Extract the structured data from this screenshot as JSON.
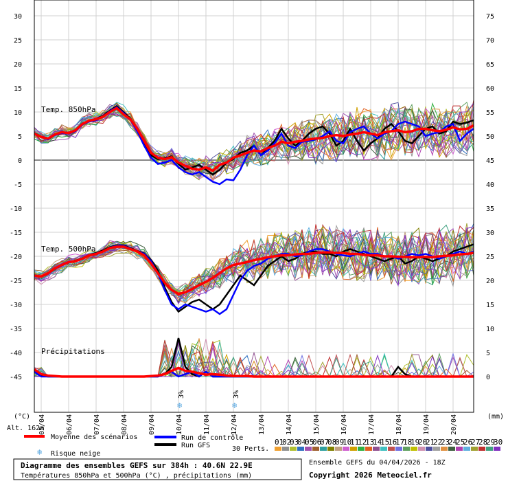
{
  "chart_data": {
    "type": "line",
    "title": "Diagramme des ensembles GEFS sur 384h : 40.6N 22.9E",
    "subtitle": "Températures 850hPa et 500hPa (°C) , précipitations (mm)",
    "left_axis_unit": "(°C)",
    "right_axis_unit": "(mm)",
    "altitude": "Alt. 162m",
    "left_ticks": [
      30,
      25,
      20,
      15,
      10,
      5,
      0,
      -5,
      -10,
      -15,
      -20,
      -25,
      -30,
      -35,
      -40,
      -45
    ],
    "right_ticks": [
      75,
      70,
      65,
      60,
      55,
      50,
      45,
      40,
      35,
      30,
      25,
      20,
      15,
      10,
      5,
      0
    ],
    "ylim": [
      -45,
      30
    ],
    "x_labels": [
      "05/04",
      "06/04",
      "07/04",
      "08/04",
      "09/04",
      "10/04",
      "11/04",
      "12/04",
      "13/04",
      "14/04",
      "15/04",
      "16/04",
      "17/04",
      "18/04",
      "19/04",
      "20/04"
    ],
    "x_range_days": [
      4.75,
      20.75
    ],
    "grid": true,
    "panel_labels": {
      "t850": "Temp. 850hPa",
      "t500": "Temp. 500hPa",
      "precip": "Précipitations"
    },
    "snow_risk_labels": [
      {
        "day": 10.1,
        "value": "3%"
      },
      {
        "day": 12.1,
        "value": "3%"
      }
    ],
    "t850": {
      "days": [
        4.75,
        5.0,
        5.25,
        5.5,
        5.75,
        6.0,
        6.25,
        6.5,
        6.75,
        7.0,
        7.25,
        7.5,
        7.75,
        8.0,
        8.25,
        8.5,
        8.75,
        9.0,
        9.25,
        9.5,
        9.75,
        10.0,
        10.25,
        10.5,
        10.75,
        11.0,
        11.25,
        11.5,
        11.75,
        12.0,
        12.25,
        12.5,
        12.75,
        13.0,
        13.25,
        13.5,
        13.75,
        14.0,
        14.25,
        14.5,
        14.75,
        15.0,
        15.25,
        15.5,
        15.75,
        16.0,
        16.25,
        16.5,
        16.75,
        17.0,
        17.25,
        17.5,
        17.75,
        18.0,
        18.25,
        18.5,
        18.75,
        19.0,
        19.25,
        19.5,
        19.75,
        20.0,
        20.25,
        20.5,
        20.75
      ],
      "mean": [
        5.5,
        4.8,
        4.5,
        5.3,
        5.8,
        5.6,
        6.2,
        7.5,
        8.2,
        8.5,
        9.0,
        10.0,
        10.8,
        9.5,
        8.5,
        6.5,
        4.0,
        1.5,
        0.5,
        0.2,
        0.6,
        -0.5,
        -1.2,
        -1.8,
        -2.0,
        -1.5,
        -2.2,
        -1.0,
        -0.5,
        0.5,
        1.0,
        1.5,
        2.0,
        1.8,
        2.5,
        3.0,
        3.8,
        3.5,
        3.8,
        4.0,
        4.3,
        4.5,
        4.6,
        5.0,
        5.2,
        5.0,
        5.3,
        5.5,
        5.8,
        5.5,
        5.2,
        5.8,
        6.0,
        6.2,
        5.8,
        6.0,
        6.5,
        6.5,
        6.2,
        6.0,
        6.3,
        6.8,
        6.4,
        6.5,
        7.2
      ],
      "control": [
        5.5,
        4.8,
        4.3,
        5.2,
        5.6,
        5.5,
        6.0,
        7.4,
        8.0,
        8.3,
        9.0,
        10.2,
        11.0,
        9.8,
        8.4,
        6.0,
        3.0,
        0.5,
        -0.8,
        -0.5,
        0.0,
        -1.5,
        -2.5,
        -3.0,
        -2.5,
        -3.5,
        -4.5,
        -5.0,
        -4.0,
        -4.2,
        -2.0,
        1.0,
        3.0,
        1.0,
        2.0,
        3.5,
        5.5,
        3.0,
        2.5,
        3.8,
        4.0,
        4.3,
        5.0,
        6.0,
        4.0,
        3.5,
        5.8,
        6.5,
        7.0,
        5.5,
        4.5,
        5.5,
        6.0,
        7.5,
        8.0,
        7.5,
        7.0,
        5.0,
        5.5,
        5.8,
        7.0,
        7.5,
        4.0,
        5.5,
        6.5
      ],
      "gfs": [
        5.6,
        4.9,
        4.5,
        5.4,
        5.8,
        5.7,
        6.2,
        7.6,
        8.2,
        8.6,
        9.2,
        10.3,
        11.2,
        10.0,
        8.6,
        6.4,
        3.5,
        1.0,
        0.2,
        0.4,
        0.8,
        -0.8,
        -2.0,
        -1.5,
        -1.0,
        -2.0,
        -3.0,
        -2.0,
        -0.5,
        0.2,
        1.5,
        2.0,
        3.0,
        1.0,
        2.5,
        4.0,
        6.5,
        4.5,
        3.0,
        4.0,
        5.5,
        6.5,
        7.0,
        5.5,
        3.0,
        4.0,
        6.5,
        4.0,
        2.0,
        3.5,
        4.5,
        6.5,
        7.5,
        6.0,
        4.0,
        3.5,
        5.0,
        6.5,
        7.0,
        5.5,
        6.0,
        8.0,
        7.5,
        7.8,
        8.3
      ]
    },
    "t500": {
      "days": [
        4.75,
        5.0,
        5.25,
        5.5,
        5.75,
        6.0,
        6.25,
        6.5,
        6.75,
        7.0,
        7.25,
        7.5,
        7.75,
        8.0,
        8.25,
        8.5,
        8.75,
        9.0,
        9.25,
        9.5,
        9.75,
        10.0,
        10.25,
        10.5,
        10.75,
        11.0,
        11.25,
        11.5,
        11.75,
        12.0,
        12.25,
        12.5,
        12.75,
        13.0,
        13.25,
        13.5,
        13.75,
        14.0,
        14.25,
        14.5,
        14.75,
        15.0,
        15.25,
        15.5,
        15.75,
        16.0,
        16.25,
        16.5,
        16.75,
        17.0,
        17.25,
        17.5,
        17.75,
        18.0,
        18.25,
        18.5,
        18.75,
        19.0,
        19.25,
        19.5,
        19.75,
        20.0,
        20.25,
        20.5,
        20.75
      ],
      "mean": [
        -24.0,
        -24.2,
        -23.5,
        -22.5,
        -21.8,
        -21.2,
        -21.0,
        -20.5,
        -19.8,
        -19.5,
        -19.0,
        -18.3,
        -18.0,
        -18.0,
        -18.5,
        -19.0,
        -19.8,
        -21.5,
        -23.5,
        -25.5,
        -27.0,
        -27.8,
        -27.5,
        -26.8,
        -26.0,
        -25.3,
        -24.5,
        -23.5,
        -22.5,
        -21.8,
        -21.5,
        -21.2,
        -20.8,
        -20.5,
        -20.2,
        -20.0,
        -19.8,
        -19.8,
        -19.6,
        -19.5,
        -19.5,
        -19.3,
        -19.2,
        -19.2,
        -19.3,
        -19.3,
        -19.5,
        -19.5,
        -19.7,
        -19.8,
        -19.8,
        -20.0,
        -20.0,
        -20.1,
        -20.1,
        -20.2,
        -20.2,
        -20.1,
        -20.2,
        -20.0,
        -19.9,
        -19.8,
        -19.6,
        -19.5,
        -19.3
      ],
      "control": [
        -24.0,
        -24.3,
        -23.6,
        -22.6,
        -21.9,
        -21.3,
        -21.0,
        -20.5,
        -19.8,
        -19.4,
        -19.0,
        -18.2,
        -17.8,
        -17.8,
        -18.4,
        -19.0,
        -19.5,
        -21.0,
        -23.5,
        -27.0,
        -30.0,
        -31.0,
        -30.0,
        -30.5,
        -31.0,
        -31.5,
        -31.0,
        -32.0,
        -31.0,
        -28.0,
        -25.0,
        -23.0,
        -22.0,
        -21.5,
        -20.5,
        -20.0,
        -19.5,
        -19.5,
        -20.0,
        -19.8,
        -19.0,
        -18.5,
        -18.5,
        -19.0,
        -19.5,
        -19.8,
        -20.0,
        -19.5,
        -19.0,
        -19.5,
        -19.5,
        -20.0,
        -20.0,
        -20.5,
        -20.0,
        -19.5,
        -19.8,
        -19.5,
        -20.0,
        -20.5,
        -20.0,
        -19.5,
        -19.0,
        -19.5,
        -19.0
      ],
      "gfs": [
        -24.0,
        -24.2,
        -23.5,
        -22.6,
        -21.9,
        -21.2,
        -20.9,
        -20.4,
        -19.7,
        -19.3,
        -18.8,
        -18.1,
        -17.7,
        -17.7,
        -18.3,
        -18.9,
        -19.4,
        -20.8,
        -23.0,
        -26.5,
        -29.5,
        -31.5,
        -30.5,
        -29.5,
        -29.0,
        -30.0,
        -31.0,
        -30.0,
        -28.0,
        -26.0,
        -24.0,
        -25.0,
        -26.0,
        -24.0,
        -22.0,
        -21.0,
        -20.0,
        -21.0,
        -20.5,
        -19.5,
        -19.0,
        -19.0,
        -19.5,
        -19.5,
        -20.0,
        -19.0,
        -18.5,
        -19.0,
        -19.5,
        -20.0,
        -20.5,
        -21.0,
        -20.5,
        -20.0,
        -21.5,
        -21.0,
        -20.0,
        -20.5,
        -21.0,
        -20.5,
        -20.0,
        -19.0,
        -18.5,
        -18.0,
        -17.5
      ]
    },
    "precip": {
      "baseline": -45,
      "days": [
        4.75,
        5.0,
        5.25,
        5.5,
        5.75,
        6.0,
        6.25,
        6.5,
        6.75,
        7.0,
        7.25,
        7.5,
        7.75,
        8.0,
        8.25,
        8.5,
        8.75,
        9.0,
        9.25,
        9.5,
        9.75,
        10.0,
        10.25,
        10.5,
        10.75,
        11.0,
        11.25,
        11.5,
        11.75,
        12.0,
        12.25,
        12.5,
        12.75,
        13.0,
        13.25,
        13.5,
        13.75,
        14.0,
        14.25,
        14.5,
        14.75,
        15.0,
        15.25,
        15.5,
        15.75,
        16.0,
        16.25,
        16.5,
        16.75,
        17.0,
        17.25,
        17.5,
        17.75,
        18.0,
        18.25,
        18.5,
        18.75,
        19.0,
        19.25,
        19.5,
        19.75,
        20.0,
        20.25,
        20.5,
        20.75
      ],
      "mean": [
        -43.5,
        -44.5,
        -44.8,
        -44.9,
        -45.0,
        -45.0,
        -45.0,
        -45.0,
        -45.0,
        -45.0,
        -45.0,
        -45.0,
        -45.0,
        -45.0,
        -45.0,
        -45.0,
        -45.0,
        -44.9,
        -44.8,
        -44.5,
        -43.8,
        -43.2,
        -43.8,
        -44.0,
        -44.3,
        -44.6,
        -44.5,
        -44.6,
        -44.8,
        -44.9,
        -44.9,
        -44.9,
        -45.0,
        -45.0,
        -45.0,
        -45.0,
        -45.0,
        -45.0,
        -45.0,
        -45.0,
        -45.0,
        -45.0,
        -45.0,
        -45.0,
        -45.0,
        -45.0,
        -45.0,
        -45.0,
        -45.0,
        -45.0,
        -45.0,
        -45.0,
        -45.0,
        -45.0,
        -45.0,
        -45.0,
        -45.0,
        -45.0,
        -45.0,
        -45.0,
        -45.0,
        -45.0,
        -45.0,
        -45.0,
        -45.0
      ],
      "control": [
        -44.0,
        -45.0,
        -45.0,
        -45.0,
        -45.0,
        -45.0,
        -45.0,
        -45.0,
        -45.0,
        -45.0,
        -45.0,
        -45.0,
        -45.0,
        -45.0,
        -45.0,
        -45.0,
        -45.0,
        -45.0,
        -45.0,
        -44.5,
        -44.0,
        -45.0,
        -44.5,
        -44.0,
        -45.0,
        -44.0,
        -45.0,
        -45.0,
        -45.0,
        -45.0,
        -45.0,
        -45.0,
        -45.0,
        -45.0,
        -45.0,
        -45.0,
        -45.0,
        -45.0,
        -45.0,
        -45.0,
        -45.0,
        -45.0,
        -45.0,
        -45.0,
        -45.0,
        -45.0,
        -45.0,
        -45.0,
        -45.0,
        -45.0,
        -45.0,
        -45.0,
        -45.0,
        -45.0,
        -45.0,
        -45.0,
        -45.0,
        -45.0,
        -45.0,
        -45.0,
        -45.0,
        -45.0,
        -45.0,
        -45.0,
        -45.0
      ],
      "gfs": [
        -44.0,
        -44.8,
        -45.0,
        -45.0,
        -45.0,
        -45.0,
        -45.0,
        -45.0,
        -45.0,
        -45.0,
        -45.0,
        -45.0,
        -45.0,
        -45.0,
        -45.0,
        -45.0,
        -45.0,
        -45.0,
        -45.0,
        -44.5,
        -43.0,
        -37.0,
        -43.0,
        -44.5,
        -45.0,
        -44.0,
        -45.0,
        -45.0,
        -45.0,
        -45.0,
        -45.0,
        -45.0,
        -45.0,
        -45.0,
        -45.0,
        -45.0,
        -45.0,
        -45.0,
        -45.0,
        -45.0,
        -45.0,
        -45.0,
        -45.0,
        -45.0,
        -45.0,
        -45.0,
        -45.0,
        -45.0,
        -45.0,
        -45.0,
        -45.0,
        -45.0,
        -45.0,
        -43.0,
        -44.5,
        -45.0,
        -45.0,
        -45.0,
        -45.0,
        -45.0,
        -45.0,
        -45.0,
        -45.0,
        -45.0,
        -45.0
      ]
    },
    "member_colors": [
      "#f0a030",
      "#909090",
      "#b0c030",
      "#3070c0",
      "#a050b0",
      "#a06030",
      "#30a0a0",
      "#808000",
      "#c0a080",
      "#d060d0",
      "#d0a000",
      "#30b040",
      "#e06020",
      "#905090",
      "#40c0c0",
      "#c05050",
      "#7070e0",
      "#60a060",
      "#c0c000",
      "#d090b0",
      "#5050a0",
      "#a0a0a0",
      "#e09040",
      "#406040",
      "#b040b0",
      "#60b0e0",
      "#a0a030",
      "#c03030",
      "#40a080",
      "#8030c0"
    ],
    "member_ids": [
      "01",
      "02",
      "03",
      "04",
      "05",
      "06",
      "07",
      "08",
      "09",
      "10",
      "11",
      "12",
      "13",
      "14",
      "15",
      "16",
      "17",
      "18",
      "19",
      "20",
      "21",
      "22",
      "23",
      "24",
      "25",
      "26",
      "27",
      "28",
      "29",
      "30"
    ],
    "colors": {
      "mean": "#ff0000",
      "control": "#0000ff",
      "gfs": "#000000"
    }
  },
  "legend": {
    "mean_label": "Moyenne des scénarios",
    "control_label": "Run de contrôle",
    "gfs_label": "Run GFS",
    "snow_label": "Risque neige",
    "perts_label": "30 Perts."
  },
  "footer": {
    "title": "Diagramme des ensembles GEFS sur 384h : 40.6N 22.9E",
    "subtitle": "Températures 850hPa et 500hPa (°C) , précipitations (mm)",
    "run_info": "Ensemble GEFS du 04/04/2026 - 18Z",
    "copyright": "Copyright 2026 Meteociel.fr"
  }
}
